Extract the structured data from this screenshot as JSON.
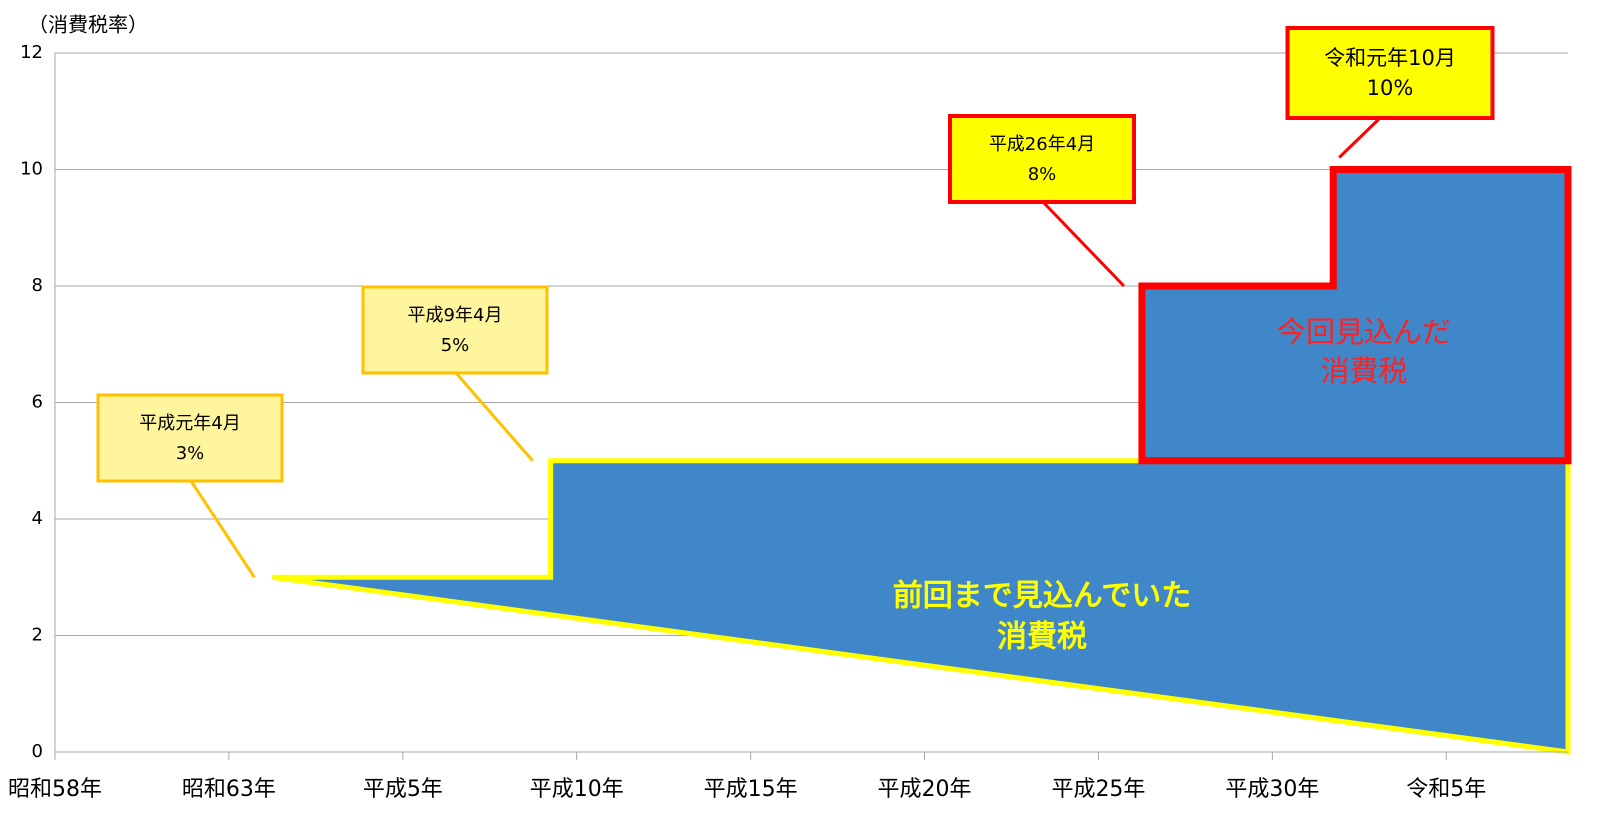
{
  "chart_data": {
    "type": "step-area",
    "y_axis_label": "（消費税率）",
    "xlim": [
      1983,
      2026.5
    ],
    "xticks": [
      {
        "value": 1983,
        "label": "昭和58年"
      },
      {
        "value": 1988,
        "label": "昭和63年"
      },
      {
        "value": 1993,
        "label": "平成5年"
      },
      {
        "value": 1998,
        "label": "平成10年"
      },
      {
        "value": 2003,
        "label": "平成15年"
      },
      {
        "value": 2008,
        "label": "平成20年"
      },
      {
        "value": 2013,
        "label": "平成25年"
      },
      {
        "value": 2018,
        "label": "平成30年"
      },
      {
        "value": 2023,
        "label": "令和5年"
      }
    ],
    "ylim": [
      0,
      12
    ],
    "yticks": [
      0,
      2,
      4,
      6,
      8,
      10,
      12
    ],
    "grid": true,
    "fill_color": "#3f87c8",
    "series": [
      {
        "name": "前回まで見込んでいた\n消費税",
        "color": "#ffff00",
        "label_color": "#ffff00",
        "callout_fill": "#fff59d",
        "callout_border": "#ffc000",
        "x": [
          1989.25,
          1997.25
        ],
        "values": [
          3,
          5
        ],
        "value_labels": [
          "3%",
          "5%"
        ],
        "x_labels": [
          "平成元年4月",
          "平成9年4月"
        ]
      },
      {
        "name": "今回見込んだ\n消費税",
        "color": "#ff0000",
        "label_color": "#ff2020",
        "callout_fill": "#ffff00",
        "callout_border": "#ff0000",
        "x": [
          2014.25,
          2019.75
        ],
        "values": [
          8,
          10
        ],
        "value_labels": [
          "8%",
          "10%"
        ],
        "x_labels": [
          "平成26年4月",
          "令和元年10月"
        ]
      }
    ]
  }
}
